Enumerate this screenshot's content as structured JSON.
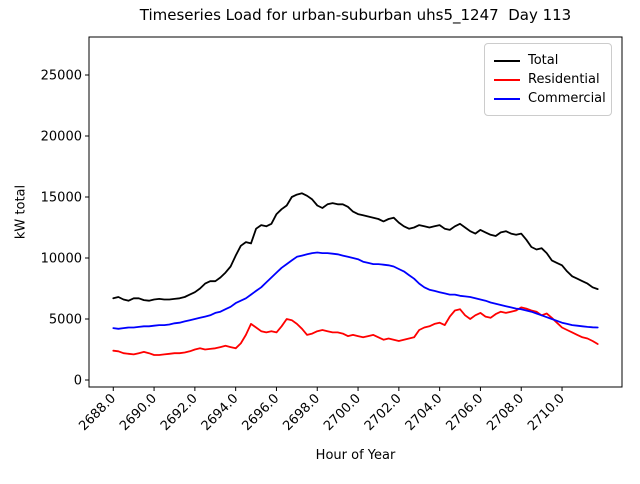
{
  "title": "Timeseries Load for urban-suburban uhs5_1247  Day 113",
  "chart_data": {
    "type": "line",
    "title": "Timeseries Load for urban-suburban uhs5_1247  Day 113",
    "xlabel": "Hour of Year",
    "ylabel": "kW total",
    "grid": false,
    "xlim": [
      2686.81,
      2712.94
    ],
    "ylim": [
      -574,
      28115
    ],
    "xticks": [
      2688,
      2690,
      2692,
      2694,
      2696,
      2698,
      2700,
      2702,
      2704,
      2706,
      2708,
      2710
    ],
    "xtick_labels": [
      "2688.0",
      "2690.0",
      "2692.0",
      "2694.0",
      "2696.0",
      "2698.0",
      "2700.0",
      "2702.0",
      "2704.0",
      "2706.0",
      "2708.0",
      "2710.0"
    ],
    "yticks": [
      0,
      5000,
      10000,
      15000,
      20000,
      25000
    ],
    "ytick_labels": [
      "0",
      "5000",
      "10000",
      "15000",
      "20000",
      "25000"
    ],
    "x_start": 2688.0,
    "x_step": 0.25,
    "legend": {
      "position": "upper right",
      "entries": [
        {
          "label": "Total",
          "color": "#000000"
        },
        {
          "label": "Residential",
          "color": "#ff0000"
        },
        {
          "label": "Commercial",
          "color": "#0000ff"
        }
      ]
    },
    "series": [
      {
        "name": "Total",
        "color": "#000000",
        "values": [
          6700,
          6800,
          6600,
          6500,
          6700,
          6700,
          6550,
          6500,
          6600,
          6650,
          6600,
          6600,
          6650,
          6700,
          6800,
          7000,
          7200,
          7500,
          7900,
          8100,
          8100,
          8400,
          8800,
          9300,
          10200,
          11000,
          11300,
          11200,
          12400,
          12700,
          12600,
          12800,
          13600,
          14000,
          14300,
          15000,
          15200,
          15300,
          15100,
          14800,
          14300,
          14100,
          14400,
          14500,
          14400,
          14400,
          14200,
          13800,
          13600,
          13500,
          13400,
          13300,
          13200,
          13000,
          13200,
          13300,
          12900,
          12600,
          12400,
          12500,
          12700,
          12600,
          12500,
          12600,
          12700,
          12400,
          12300,
          12600,
          12800,
          12500,
          12200,
          12000,
          12300,
          12100,
          11900,
          11800,
          12100,
          12200,
          12000,
          11900,
          12000,
          11500,
          10900,
          10700,
          10800,
          10400,
          9800,
          9600,
          9400,
          8900,
          8500,
          8300,
          8100,
          7900,
          7600,
          7450
        ]
      },
      {
        "name": "Residential",
        "color": "#ff0000",
        "values": [
          2400,
          2350,
          2200,
          2150,
          2100,
          2200,
          2300,
          2200,
          2050,
          2050,
          2100,
          2150,
          2200,
          2200,
          2250,
          2350,
          2500,
          2600,
          2500,
          2550,
          2600,
          2700,
          2800,
          2700,
          2600,
          3000,
          3700,
          4600,
          4300,
          4000,
          3900,
          4000,
          3900,
          4400,
          5000,
          4900,
          4600,
          4200,
          3700,
          3800,
          4000,
          4100,
          4000,
          3900,
          3900,
          3800,
          3600,
          3700,
          3600,
          3500,
          3600,
          3700,
          3500,
          3300,
          3400,
          3300,
          3200,
          3300,
          3400,
          3500,
          4100,
          4300,
          4400,
          4600,
          4700,
          4500,
          5200,
          5700,
          5800,
          5300,
          5000,
          5300,
          5500,
          5200,
          5100,
          5400,
          5600,
          5500,
          5600,
          5700,
          5950,
          5850,
          5700,
          5600,
          5300,
          5450,
          5100,
          4700,
          4300,
          4100,
          3900,
          3700,
          3500,
          3400,
          3200,
          2950
        ]
      },
      {
        "name": "Commercial",
        "color": "#0000ff",
        "values": [
          4250,
          4200,
          4250,
          4300,
          4300,
          4350,
          4400,
          4400,
          4450,
          4500,
          4500,
          4550,
          4650,
          4700,
          4800,
          4900,
          5000,
          5100,
          5200,
          5300,
          5500,
          5600,
          5800,
          6000,
          6300,
          6500,
          6700,
          7000,
          7300,
          7600,
          8000,
          8400,
          8800,
          9200,
          9500,
          9800,
          10100,
          10200,
          10300,
          10400,
          10450,
          10400,
          10400,
          10350,
          10300,
          10200,
          10100,
          10000,
          9900,
          9700,
          9600,
          9500,
          9500,
          9450,
          9400,
          9300,
          9100,
          8900,
          8600,
          8300,
          7900,
          7600,
          7400,
          7300,
          7200,
          7100,
          7000,
          7000,
          6900,
          6850,
          6800,
          6700,
          6600,
          6500,
          6350,
          6250,
          6150,
          6050,
          5950,
          5850,
          5800,
          5700,
          5600,
          5450,
          5300,
          5150,
          5000,
          4850,
          4700,
          4600,
          4500,
          4450,
          4400,
          4350,
          4320,
          4300
        ]
      }
    ]
  }
}
